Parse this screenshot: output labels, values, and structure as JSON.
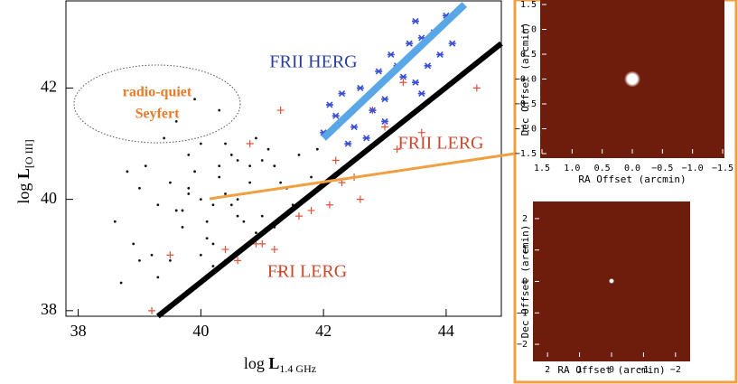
{
  "chart_data": [
    {
      "type": "scatter",
      "x_label": "log ",
      "x_label_main": "L",
      "x_label_sub": "1.4 GHz",
      "y_label": "log ",
      "y_label_main": "L",
      "y_label_sub": "[O III]",
      "xlim": [
        37.8,
        44.9
      ],
      "ylim": [
        37.9,
        43.5
      ],
      "xticks": [
        38,
        40,
        42,
        44
      ],
      "yticks": [
        38,
        40,
        42
      ],
      "annotations": [
        "radio-quiet",
        "Seyfert",
        "FRII HERG",
        "FRII LERG",
        "FRI LERG"
      ],
      "series": [
        {
          "marker": "dot",
          "color": "#111111",
          "x": [
            40.0,
            40.2,
            40.4,
            39.8,
            39.6,
            40.6,
            40.8,
            41.0,
            39.9,
            40.1,
            40.3,
            40.5,
            40.7,
            39.7,
            39.5,
            41.2,
            41.4,
            40.9,
            39.3,
            39.1,
            38.9,
            41.6,
            41.8,
            40.0,
            40.2,
            39.8,
            40.6,
            41.1,
            39.4,
            40.4,
            38.6,
            39.0,
            41.5,
            40.8,
            40.1,
            39.6,
            40.3,
            41.3,
            39.2,
            40.7,
            41.9,
            42.1,
            39.9,
            40.5,
            38.8,
            39.7,
            40.9,
            41.7,
            40.2,
            39.5,
            39.0,
            40.0,
            40.6,
            41.0,
            39.3,
            40.4,
            39.8,
            41.2,
            40.3,
            38.7
          ],
          "y": [
            40.0,
            39.9,
            40.1,
            40.2,
            39.8,
            40.0,
            40.3,
            39.7,
            40.5,
            39.6,
            40.4,
            39.9,
            40.1,
            39.5,
            40.3,
            40.6,
            40.2,
            39.4,
            39.9,
            40.6,
            39.2,
            40.8,
            40.4,
            41.0,
            39.2,
            40.8,
            40.7,
            40.9,
            41.1,
            38.9,
            39.6,
            38.9,
            39.9,
            40.6,
            39.3,
            41.4,
            41.6,
            40.3,
            39.0,
            39.6,
            40.9,
            41.2,
            41.8,
            40.8,
            40.5,
            39.8,
            41.1,
            40.0,
            38.8,
            38.9,
            40.2,
            39.0,
            39.7,
            40.7,
            38.6,
            41.0,
            40.1,
            39.5,
            40.6,
            38.5
          ]
        },
        {
          "marker": "plus",
          "color": "#e0503a",
          "x": [
            39.2,
            39.5,
            40.4,
            40.9,
            41.0,
            41.2,
            41.3,
            41.6,
            42.1,
            42.3,
            42.5,
            42.6,
            42.8,
            43.0,
            43.3,
            43.6,
            44.5,
            41.3,
            40.8,
            41.8,
            42.2,
            43.2,
            40.6
          ],
          "y": [
            38.0,
            39.0,
            39.1,
            39.2,
            39.2,
            39.1,
            41.6,
            39.7,
            39.9,
            40.3,
            40.4,
            40.0,
            41.6,
            41.3,
            42.1,
            41.2,
            42.0,
            38.7,
            41.0,
            39.8,
            40.7,
            40.9,
            38.9
          ]
        },
        {
          "marker": "star",
          "color": "#3a4fd6",
          "x": [
            42.0,
            42.2,
            42.3,
            42.5,
            42.6,
            42.8,
            42.9,
            43.0,
            43.1,
            43.3,
            43.4,
            43.5,
            43.6,
            43.7,
            43.8,
            43.9,
            44.0,
            44.1,
            42.4,
            42.7,
            43.2,
            43.5,
            42.1,
            43.0,
            43.6
          ],
          "y": [
            41.2,
            41.5,
            41.9,
            41.3,
            42.0,
            41.6,
            42.3,
            41.8,
            42.6,
            42.2,
            42.8,
            42.1,
            42.9,
            42.4,
            43.0,
            42.6,
            43.3,
            42.8,
            41.0,
            41.1,
            42.4,
            43.2,
            41.7,
            41.4,
            41.9
          ]
        },
        {
          "marker": "line",
          "color": "#5aa7e8",
          "x": [
            42.0,
            44.3
          ],
          "y": [
            41.1,
            43.5
          ]
        },
        {
          "marker": "line",
          "color": "#000000",
          "x": [
            39.3,
            44.9
          ],
          "y": [
            37.9,
            42.8
          ]
        }
      ]
    },
    {
      "type": "image",
      "x_label": "RA Offset (arcmin)",
      "y_label": "Dec Offset (arcmin)",
      "xlim": [
        1.5,
        -1.5
      ],
      "ylim": [
        -1.5,
        1.5
      ],
      "xticks": [
        1.5,
        {
          "value": 1,
          "label": "1.0"
        },
        0.5,
        {
          "value": 0,
          "label": "0.0"
        },
        {
          "value": -0.5,
          "label": "−0.5"
        },
        {
          "value": -1,
          "label": "−1.0"
        },
        {
          "value": -1.5,
          "label": "−1.5"
        }
      ],
      "yticks": [
        1.5,
        {
          "value": 1,
          "label": "1.0"
        },
        0.5,
        {
          "value": 0,
          "label": "−0.0"
        },
        {
          "value": -0.5,
          "label": "−0.5"
        },
        {
          "value": -1,
          "label": "−1.0"
        },
        {
          "value": -1.5,
          "label": "−1.5"
        }
      ]
    },
    {
      "type": "image",
      "x_label": "RA Offset (arcmin)",
      "y_label": "Dec Offset (arcmin)",
      "xlim": [
        2.4,
        -2.4
      ],
      "ylim": [
        -2.4,
        2.4
      ],
      "xticks": [
        2,
        1,
        0,
        {
          "value": -1,
          "label": "−1"
        },
        {
          "value": -2,
          "label": "−2"
        }
      ],
      "yticks": [
        2,
        1,
        0,
        {
          "value": -1,
          "label": "−1"
        },
        {
          "value": -2,
          "label": "−2"
        }
      ]
    }
  ]
}
